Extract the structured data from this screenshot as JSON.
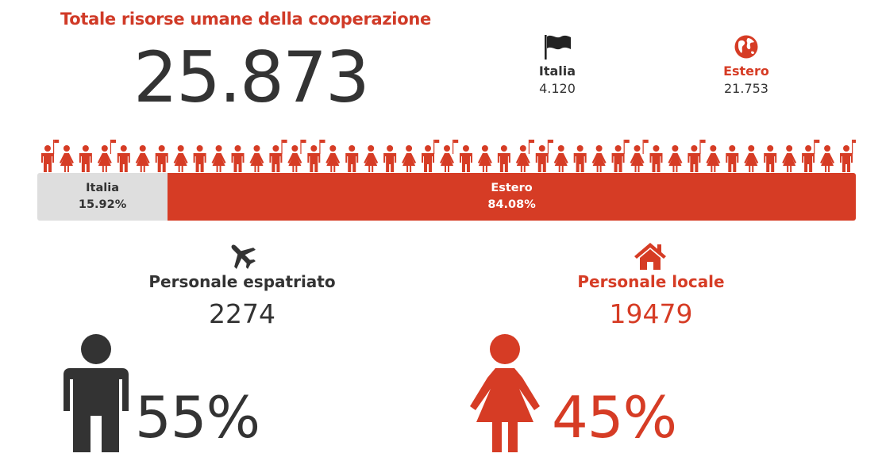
{
  "title": "Totale risorse umane della cooperazione",
  "total": "25.873",
  "italia": {
    "label": "Italia",
    "value": "4.120"
  },
  "estero": {
    "label": "Estero",
    "value": "21.753"
  },
  "bar": {
    "italia_label": "Italia",
    "italia_pct": "15.92%",
    "estero_label": "Estero",
    "estero_pct": "84.08%",
    "italia_fraction": 0.1592
  },
  "espatriato": {
    "label": "Personale espatriato",
    "value": "2274"
  },
  "locale": {
    "label": "Personale locale",
    "value": "19479"
  },
  "men_pct": "55%",
  "women_pct": "45%",
  "colors": {
    "accent": "#d63c25",
    "dark": "#333333",
    "grey": "#dedede"
  },
  "icons": [
    "flag-icon",
    "globe-icon",
    "plane-icon",
    "house-icon",
    "man-icon",
    "woman-icon"
  ]
}
